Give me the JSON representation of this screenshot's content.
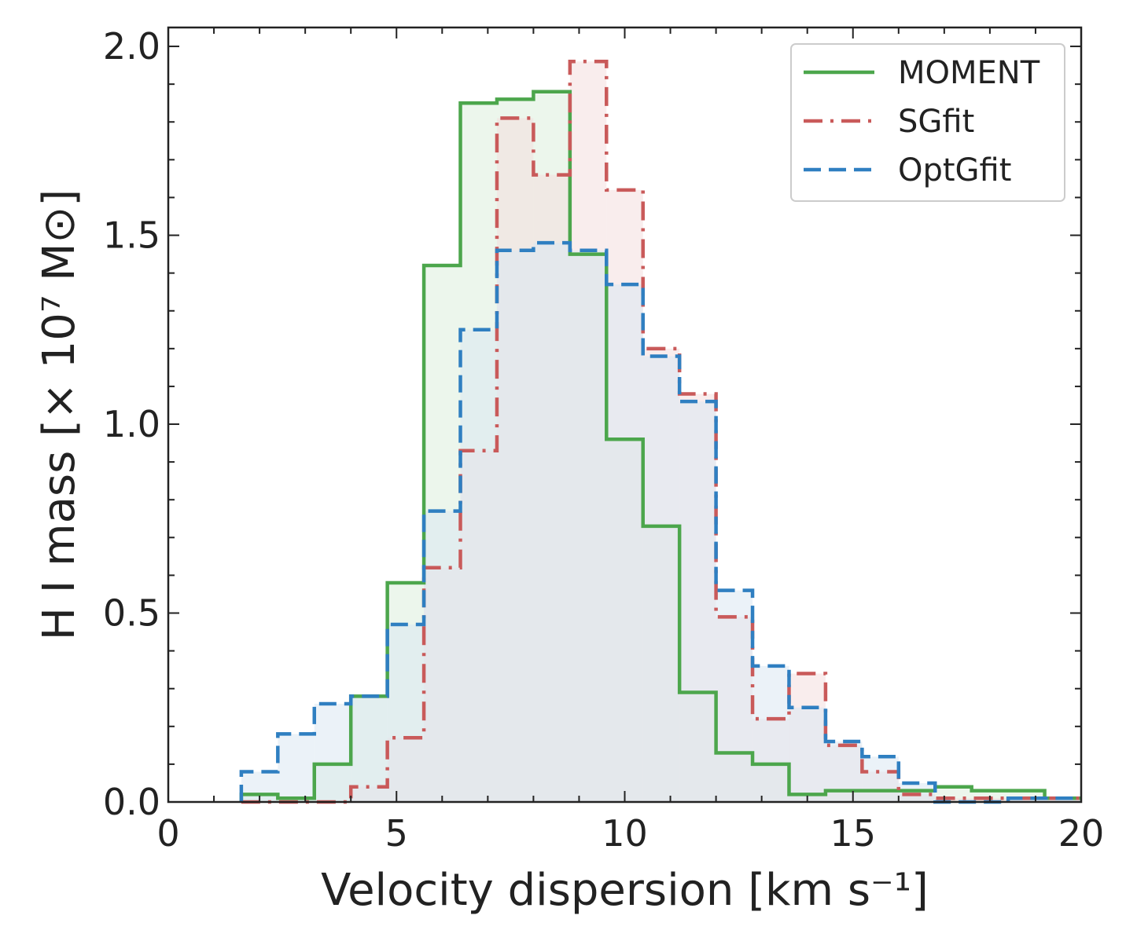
{
  "chart_data": {
    "type": "histogram",
    "xlabel": "Velocity dispersion [km s⁻¹]",
    "ylabel": "H I mass [× 10⁷ M⊙]",
    "xlim": [
      0,
      20
    ],
    "ylim": [
      0,
      2.05
    ],
    "xticks": [
      0,
      5,
      10,
      15,
      20
    ],
    "xtick_labels": [
      "0",
      "5",
      "10",
      "15",
      "20"
    ],
    "yticks": [
      0.0,
      0.5,
      1.0,
      1.5,
      2.0
    ],
    "ytick_labels": [
      "0.0",
      "0.5",
      "1.0",
      "1.5",
      "2.0"
    ],
    "x_minor_step": 1,
    "y_minor_step": 0.1,
    "grid": false,
    "legend_position": "upper right",
    "bin_edges": [
      1.6,
      2.4,
      3.2,
      4.0,
      4.8,
      5.6,
      6.4,
      7.2,
      8.0,
      8.8,
      9.6,
      10.4,
      11.2,
      12.0,
      12.8,
      13.6,
      14.4,
      15.2,
      16.0,
      16.8,
      17.6,
      18.4,
      19.2,
      20.0
    ],
    "series": [
      {
        "name": "MOMENT",
        "line_style": "solid",
        "color": "#4ca64c",
        "fill_color": "#dcefdc",
        "values": [
          0.02,
          0.01,
          0.1,
          0.28,
          0.58,
          1.42,
          1.85,
          1.86,
          1.88,
          1.45,
          0.96,
          0.73,
          0.29,
          0.13,
          0.1,
          0.02,
          0.03,
          0.03,
          0.03,
          0.04,
          0.03,
          0.03,
          0.01
        ]
      },
      {
        "name": "SGfit",
        "line_style": "dashdot",
        "color": "#c95a5a",
        "fill_color": "#f4dede",
        "values": [
          0.0,
          0.0,
          0.0,
          0.04,
          0.17,
          0.62,
          0.93,
          1.81,
          1.66,
          1.96,
          1.62,
          1.2,
          1.08,
          0.49,
          0.22,
          0.34,
          0.15,
          0.08,
          0.02,
          0.01,
          0.01,
          0.01,
          0.01
        ]
      },
      {
        "name": "OptGfit",
        "line_style": "dashed",
        "color": "#2f7fc1",
        "fill_color": "#dbe7f2",
        "values": [
          0.08,
          0.18,
          0.26,
          0.28,
          0.47,
          0.77,
          1.25,
          1.46,
          1.48,
          1.46,
          1.37,
          1.18,
          1.06,
          0.56,
          0.36,
          0.25,
          0.16,
          0.12,
          0.05,
          0.0,
          0.0,
          0.01,
          0.01
        ]
      }
    ]
  }
}
